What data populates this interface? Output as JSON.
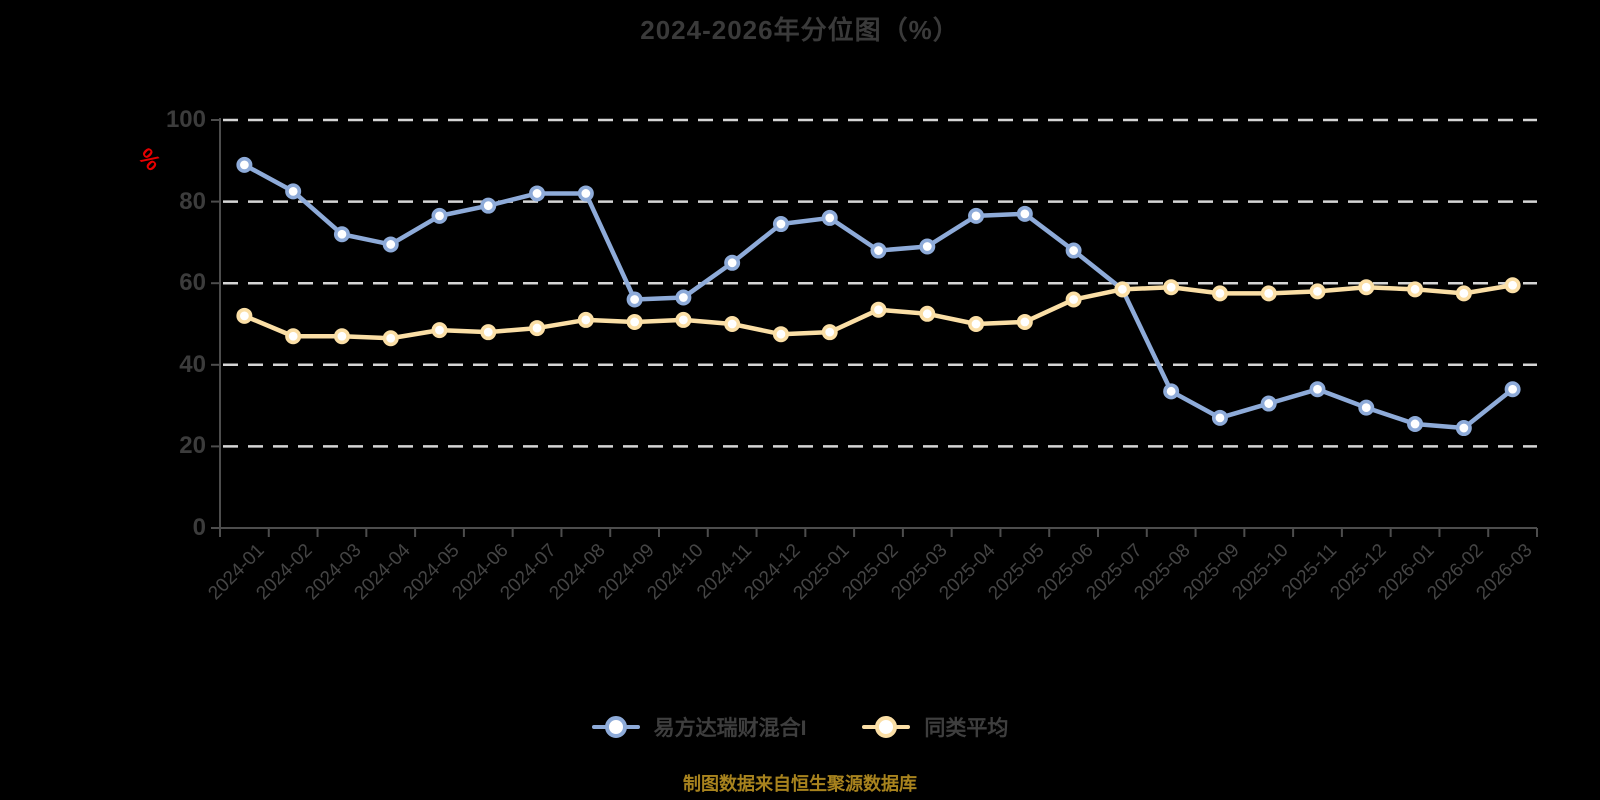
{
  "page": {
    "background_color": "#000000",
    "footer_note": "制图数据来自恒生聚源数据库"
  },
  "chart_data": {
    "type": "line",
    "title": "2024-2026年分位图（%）",
    "y_unit_label": "%",
    "y_unit_label_color": "#e60000",
    "ylim": [
      0,
      100
    ],
    "y_ticks": [
      0,
      20,
      40,
      60,
      80,
      100
    ],
    "grid": "dashed-horizontal-gridlines",
    "gridline_color": "#d5d5d5",
    "axis_color": "#4d4d4d",
    "legend_position": "bottom-center",
    "marker_style": "circle-white-center",
    "categories": [
      "2024-01",
      "2024-02",
      "2024-03",
      "2024-04",
      "2024-05",
      "2024-06",
      "2024-07",
      "2024-08",
      "2024-09",
      "2024-10",
      "2024-11",
      "2024-12",
      "2025-01",
      "2025-02",
      "2025-03",
      "2025-04",
      "2025-05",
      "2025-06",
      "2025-07",
      "2025-08",
      "2025-09",
      "2025-10",
      "2025-11",
      "2025-12",
      "2026-01",
      "2026-02",
      "2026-03"
    ],
    "series": [
      {
        "name": "易方达瑞财混合I",
        "color": "#8eabd9",
        "values": [
          89,
          82.5,
          72,
          69.5,
          76.5,
          79,
          82,
          82,
          56,
          56.5,
          65,
          74.5,
          76,
          68,
          69,
          76.5,
          77,
          68,
          58.5,
          33.5,
          27,
          30.5,
          34,
          29.5,
          25.5,
          24.5,
          34
        ]
      },
      {
        "name": "同类平均",
        "color": "#fbdfa6",
        "values": [
          52,
          47,
          47,
          46.5,
          48.5,
          48,
          49,
          51,
          50.5,
          51,
          50,
          47.5,
          48,
          53.5,
          52.5,
          50,
          50.5,
          56,
          58.5,
          59,
          57.5,
          57.5,
          58,
          59,
          58.5,
          57.5,
          59.5
        ]
      }
    ]
  }
}
